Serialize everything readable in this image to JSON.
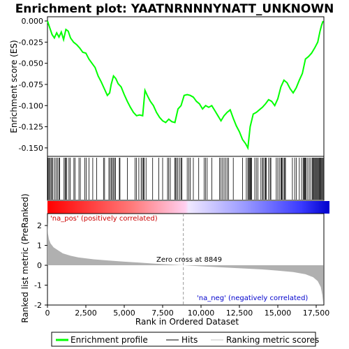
{
  "chart_data": {
    "type": "line",
    "title": "Enrichment plot: YAATNRNNNYNATT_UNKNOWN",
    "es_panel": {
      "ylabel": "Enrichment score (ES)",
      "ylim": [
        -0.16,
        0.005
      ],
      "yticks": [
        0.0,
        -0.025,
        -0.05,
        -0.075,
        -0.1,
        -0.125,
        -0.15
      ],
      "ytick_labels": [
        "0.000",
        "-0.025",
        "-0.050",
        "-0.075",
        "-0.100",
        "-0.125",
        "-0.150"
      ],
      "series_name": "Enrichment profile",
      "color": "#00ff00",
      "points": [
        [
          0,
          0.0
        ],
        [
          150,
          -0.008
        ],
        [
          300,
          -0.016
        ],
        [
          450,
          -0.02
        ],
        [
          600,
          -0.014
        ],
        [
          750,
          -0.019
        ],
        [
          900,
          -0.013
        ],
        [
          1050,
          -0.022
        ],
        [
          1200,
          -0.01
        ],
        [
          1350,
          -0.012
        ],
        [
          1500,
          -0.02
        ],
        [
          1700,
          -0.025
        ],
        [
          1900,
          -0.028
        ],
        [
          2100,
          -0.032
        ],
        [
          2300,
          -0.037
        ],
        [
          2500,
          -0.038
        ],
        [
          2700,
          -0.045
        ],
        [
          2900,
          -0.05
        ],
        [
          3100,
          -0.055
        ],
        [
          3300,
          -0.065
        ],
        [
          3500,
          -0.072
        ],
        [
          3700,
          -0.08
        ],
        [
          3900,
          -0.088
        ],
        [
          4050,
          -0.085
        ],
        [
          4150,
          -0.075
        ],
        [
          4300,
          -0.065
        ],
        [
          4450,
          -0.068
        ],
        [
          4600,
          -0.074
        ],
        [
          4800,
          -0.078
        ],
        [
          5000,
          -0.087
        ],
        [
          5200,
          -0.095
        ],
        [
          5400,
          -0.102
        ],
        [
          5600,
          -0.108
        ],
        [
          5800,
          -0.112
        ],
        [
          6000,
          -0.111
        ],
        [
          6200,
          -0.112
        ],
        [
          6350,
          -0.082
        ],
        [
          6500,
          -0.088
        ],
        [
          6700,
          -0.095
        ],
        [
          6900,
          -0.1
        ],
        [
          7100,
          -0.108
        ],
        [
          7300,
          -0.114
        ],
        [
          7500,
          -0.118
        ],
        [
          7700,
          -0.12
        ],
        [
          7900,
          -0.116
        ],
        [
          8100,
          -0.119
        ],
        [
          8300,
          -0.12
        ],
        [
          8500,
          -0.104
        ],
        [
          8700,
          -0.1
        ],
        [
          8900,
          -0.088
        ],
        [
          9100,
          -0.087
        ],
        [
          9300,
          -0.088
        ],
        [
          9500,
          -0.09
        ],
        [
          9700,
          -0.095
        ],
        [
          9900,
          -0.098
        ],
        [
          10100,
          -0.104
        ],
        [
          10300,
          -0.1
        ],
        [
          10500,
          -0.102
        ],
        [
          10700,
          -0.1
        ],
        [
          10900,
          -0.106
        ],
        [
          11100,
          -0.112
        ],
        [
          11300,
          -0.118
        ],
        [
          11500,
          -0.112
        ],
        [
          11700,
          -0.108
        ],
        [
          11900,
          -0.105
        ],
        [
          12100,
          -0.115
        ],
        [
          12300,
          -0.124
        ],
        [
          12500,
          -0.131
        ],
        [
          12700,
          -0.14
        ],
        [
          12900,
          -0.145
        ],
        [
          13050,
          -0.15
        ],
        [
          13200,
          -0.125
        ],
        [
          13400,
          -0.11
        ],
        [
          13600,
          -0.108
        ],
        [
          13800,
          -0.105
        ],
        [
          14000,
          -0.102
        ],
        [
          14200,
          -0.098
        ],
        [
          14400,
          -0.093
        ],
        [
          14600,
          -0.095
        ],
        [
          14800,
          -0.1
        ],
        [
          15000,
          -0.092
        ],
        [
          15200,
          -0.078
        ],
        [
          15400,
          -0.07
        ],
        [
          15600,
          -0.073
        ],
        [
          15800,
          -0.08
        ],
        [
          16000,
          -0.085
        ],
        [
          16200,
          -0.079
        ],
        [
          16400,
          -0.07
        ],
        [
          16600,
          -0.062
        ],
        [
          16800,
          -0.045
        ],
        [
          17000,
          -0.042
        ],
        [
          17200,
          -0.038
        ],
        [
          17400,
          -0.032
        ],
        [
          17600,
          -0.025
        ],
        [
          17750,
          -0.012
        ],
        [
          17850,
          -0.005
        ],
        [
          17950,
          0.0
        ]
      ]
    },
    "hits": [
      40,
      95,
      160,
      230,
      290,
      360,
      470,
      560,
      650,
      740,
      800,
      1080,
      1150,
      1190,
      1260,
      1400,
      1480,
      1720,
      1790,
      2050,
      2140,
      2430,
      2520,
      2700,
      2950,
      3200,
      3650,
      3720,
      4000,
      4080,
      4160,
      4230,
      4290,
      4380,
      4420,
      4680,
      4720,
      5200,
      5700,
      5800,
      5950,
      6100,
      6180,
      6250,
      6300,
      6420,
      6850,
      7250,
      7500,
      7820,
      7900,
      8000,
      8300,
      8350,
      8420,
      8500,
      8620,
      8700,
      8760,
      9100,
      9200,
      9300,
      9500,
      9850,
      10200,
      10300,
      10400,
      10700,
      11200,
      11300,
      11400,
      11500,
      11600,
      11700,
      11800,
      12100,
      12700,
      12950,
      13050,
      13100,
      13150,
      13200,
      13250,
      13300,
      13500,
      13600,
      13700,
      13900,
      14000,
      14050,
      14150,
      14200,
      14250,
      14400,
      14500,
      14550,
      14900,
      15000,
      15100,
      15200,
      15250,
      15300,
      15400,
      15450,
      15500,
      15950,
      16100,
      16200,
      16400,
      16550,
      16650,
      16700,
      16750,
      16800,
      16850,
      16950,
      17050,
      17150,
      17250,
      17300,
      17350,
      17400,
      17450,
      17500,
      17550,
      17600,
      17650,
      17700,
      17750,
      17800,
      17850,
      17900,
      17950
    ],
    "metric_panel": {
      "ylabel": "Ranked list metric (PreRanked)",
      "ylim": [
        -2.0,
        2.6
      ],
      "yticks": [
        2,
        1,
        0,
        -1,
        -2
      ],
      "ytick_labels": [
        "2",
        "1",
        "0",
        "-1",
        "-2"
      ],
      "annotation_pos": "'na_pos' (positively correlated)",
      "annotation_neg": "'na_neg' (negatively correlated)",
      "zero_cross_label": "Zero cross at 8849",
      "zero_cross": 8849,
      "points": [
        [
          0,
          2.2
        ],
        [
          30,
          1.6
        ],
        [
          100,
          1.3
        ],
        [
          200,
          1.1
        ],
        [
          400,
          0.9
        ],
        [
          700,
          0.75
        ],
        [
          1000,
          0.6
        ],
        [
          1500,
          0.48
        ],
        [
          2000,
          0.4
        ],
        [
          3000,
          0.3
        ],
        [
          4000,
          0.24
        ],
        [
          5000,
          0.18
        ],
        [
          6000,
          0.13
        ],
        [
          7000,
          0.08
        ],
        [
          8000,
          0.04
        ],
        [
          8849,
          0.0
        ],
        [
          10000,
          -0.05
        ],
        [
          11000,
          -0.09
        ],
        [
          12000,
          -0.13
        ],
        [
          13000,
          -0.17
        ],
        [
          14000,
          -0.21
        ],
        [
          15000,
          -0.27
        ],
        [
          16000,
          -0.34
        ],
        [
          16800,
          -0.45
        ],
        [
          17300,
          -0.6
        ],
        [
          17600,
          -0.8
        ],
        [
          17800,
          -1.1
        ],
        [
          17900,
          -1.5
        ],
        [
          17960,
          -1.9
        ]
      ]
    },
    "xlabel": "Rank in Ordered Dataset",
    "xlim": [
      0,
      18000
    ],
    "xticks": [
      0,
      2500,
      5000,
      7500,
      10000,
      12500,
      15000,
      17500
    ],
    "xtick_labels": [
      "0",
      "2,500",
      "5,000",
      "7,500",
      "10,000",
      "12,500",
      "15,000",
      "17,500"
    ],
    "legend": {
      "placement": "bottom",
      "items": [
        {
          "label": "Enrichment profile",
          "color": "#00ff00"
        },
        {
          "label": "Hits",
          "color": "#000000"
        },
        {
          "label": "Ranking metric scores",
          "color": "#c0c0c0"
        }
      ]
    }
  }
}
